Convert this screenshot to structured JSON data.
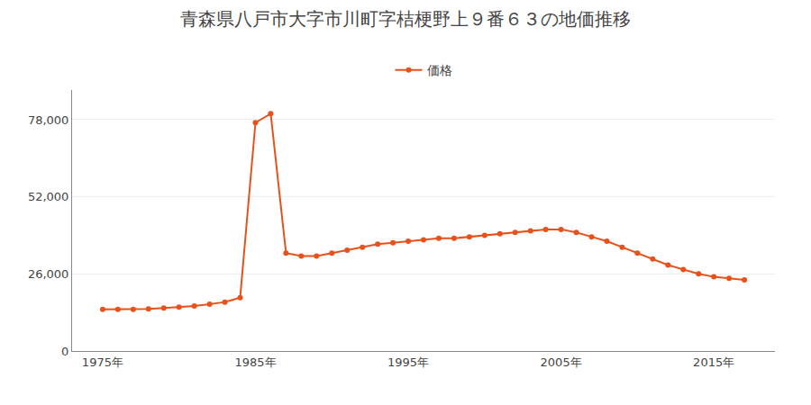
{
  "chart_data": {
    "type": "line",
    "title": "青森県八戸市大字市川町字桔梗野上９番６３の地価推移",
    "x": [
      1975,
      1976,
      1977,
      1978,
      1979,
      1980,
      1981,
      1982,
      1983,
      1984,
      1985,
      1986,
      1987,
      1988,
      1989,
      1990,
      1991,
      1992,
      1993,
      1994,
      1995,
      1996,
      1997,
      1998,
      1999,
      2000,
      2001,
      2002,
      2003,
      2004,
      2005,
      2006,
      2007,
      2008,
      2009,
      2010,
      2011,
      2012,
      2013,
      2014,
      2015,
      2016,
      2017
    ],
    "series": [
      {
        "name": "価格",
        "color": "#e8521a",
        "values": [
          14000,
          14000,
          14000,
          14200,
          14500,
          14800,
          15200,
          15800,
          16500,
          18000,
          77000,
          80000,
          33000,
          32000,
          32000,
          33000,
          34000,
          35000,
          36000,
          36500,
          37000,
          37500,
          38000,
          38000,
          38500,
          39000,
          39500,
          40000,
          40500,
          41000,
          41000,
          40000,
          38500,
          37000,
          35000,
          33000,
          31000,
          29000,
          27500,
          26000,
          25000,
          24500,
          24000
        ]
      }
    ],
    "xlim": [
      1973,
      2019
    ],
    "xticks": [
      {
        "value": 1975,
        "label": "1975年"
      },
      {
        "value": 1985,
        "label": "1985年"
      },
      {
        "value": 1995,
        "label": "1995年"
      },
      {
        "value": 2005,
        "label": "2005年"
      },
      {
        "value": 2015,
        "label": "2015年"
      }
    ],
    "ylim": [
      0,
      88000
    ],
    "yticks": [
      0,
      {
        "value": 26000,
        "label": "26,000"
      },
      {
        "value": 52000,
        "label": "52,000"
      },
      {
        "value": 78000,
        "label": "78,000"
      }
    ],
    "grid": "y",
    "legend": "top",
    "marker": "circle"
  }
}
